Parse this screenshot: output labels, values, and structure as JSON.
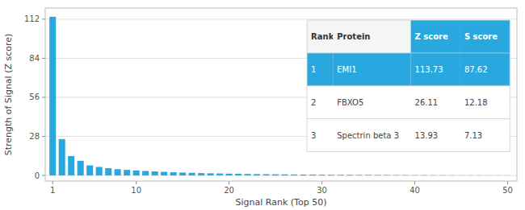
{
  "chart_data": {
    "type": "bar",
    "xlabel": "Signal Rank (Top 50)",
    "ylabel": "Strength of Signal (Z score)",
    "x": [
      1,
      2,
      3,
      4,
      5,
      6,
      7,
      8,
      9,
      10,
      11,
      12,
      13,
      14,
      15,
      16,
      17,
      18,
      19,
      20,
      21,
      22,
      23,
      24,
      25,
      26,
      27,
      28,
      29,
      30,
      31,
      32,
      33,
      34,
      35,
      36,
      37,
      38,
      39,
      40,
      41,
      42,
      43,
      44,
      45,
      46,
      47,
      48,
      49,
      50
    ],
    "values": [
      113.73,
      26.11,
      13.93,
      10.5,
      7.2,
      6.1,
      5.2,
      4.5,
      4.0,
      3.6,
      3.2,
      2.9,
      2.6,
      2.3,
      2.1,
      1.9,
      1.7,
      1.55,
      1.4,
      1.28,
      1.17,
      1.07,
      0.98,
      0.9,
      0.83,
      0.76,
      0.7,
      0.65,
      0.6,
      0.55,
      0.51,
      0.47,
      0.44,
      0.41,
      0.38,
      0.35,
      0.32,
      0.3,
      0.27,
      0.25,
      0.23,
      0.21,
      0.19,
      0.17,
      0.16,
      0.14,
      0.13,
      0.12,
      0.11,
      0.1
    ],
    "color": "#29a8df",
    "xlim": [
      0.2,
      51
    ],
    "ylim": [
      -4,
      120
    ],
    "xticks": [
      1,
      10,
      20,
      30,
      40,
      50
    ],
    "yticks": [
      0,
      28,
      56,
      84,
      112
    ],
    "grid": true,
    "table": {
      "columns": [
        "Rank",
        "Protein",
        "Z score",
        "S score"
      ],
      "rows": [
        [
          "1",
          "EMI1",
          "113.73",
          "87.62"
        ],
        [
          "2",
          "FBXO5",
          "26.11",
          "12.18"
        ],
        [
          "3",
          "Spectrin beta 3",
          "13.93",
          "7.13"
        ]
      ],
      "color": "#29a8df"
    }
  }
}
